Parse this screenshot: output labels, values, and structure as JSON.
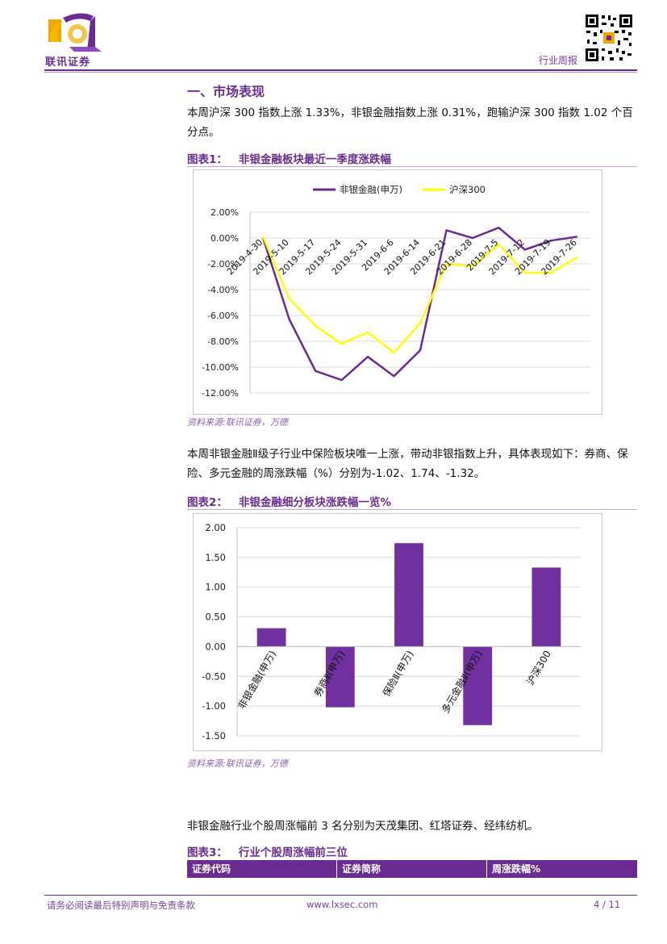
{
  "header": {
    "logo_text": "联讯证券",
    "report_type": "行业周报"
  },
  "section": {
    "title": "一、市场表现",
    "para1": "本周沪深 300 指数上涨 1.33%，非银金融指数上涨 0.31%，跑输沪深 300 指数 1.02 个百分点。",
    "para2": "本周非银金融Ⅱ级子行业中保险板块唯一上涨，带动非银指数上升，具体表现如下：券商、保险、多元金融的周涨跌幅（%）分别为-1.02、1.74、-1.32。",
    "para3": "非银金融行业个股周涨幅前 3 名分别为天茂集团、红塔证券、经纬纺机。"
  },
  "figures": {
    "fig1": {
      "num": "图表1：",
      "title": "非银金融板块最近一季度涨跌幅",
      "source": "资料来源:联讯证券，万德"
    },
    "fig2": {
      "num": "图表2：",
      "title": "非银金融细分板块涨跌幅一览%",
      "source": "资料来源:联讯证券，万德"
    },
    "fig3": {
      "num": "图表3：",
      "title": "行业个股周涨幅前三位"
    }
  },
  "table3": {
    "columns": [
      "证券代码",
      "证券简称",
      "周涨跌幅%"
    ]
  },
  "footer": {
    "disclaimer": "请务必阅读最后特别声明与免责条款",
    "url": "www.lxsec.com",
    "page": "4 / 11"
  },
  "colors": {
    "brand": "#6a2c91",
    "series1": "#6a2c91",
    "series2": "#ffff00",
    "bar": "#7030a0"
  },
  "chart_data": [
    {
      "type": "line",
      "x": [
        "2019-4-30",
        "2019-5-10",
        "2019-5-17",
        "2019-5-24",
        "2019-5-31",
        "2019-6-6",
        "2019-6-14",
        "2019-6-21",
        "2019-6-28",
        "2019-7-5",
        "2019-7-12",
        "2019-7-19",
        "2019-7-26"
      ],
      "series": [
        {
          "name": "非银金融(申万)",
          "values": [
            0.0,
            -6.3,
            -10.3,
            -11.0,
            -9.2,
            -10.7,
            -8.7,
            0.6,
            0.0,
            0.8,
            -0.9,
            -0.2,
            0.1
          ]
        },
        {
          "name": "沪深300",
          "values": [
            0.1,
            -4.7,
            -6.8,
            -8.2,
            -7.3,
            -8.9,
            -6.6,
            -2.0,
            -2.2,
            -0.5,
            -2.7,
            -2.7,
            -1.5
          ]
        }
      ],
      "yticks": [
        "2.00%",
        "0.00%",
        "-2.00%",
        "-4.00%",
        "-6.00%",
        "-8.00%",
        "-10.00%",
        "-12.00%"
      ],
      "ylim": [
        -12,
        2
      ],
      "legend": "top",
      "grid": true
    },
    {
      "type": "bar",
      "categories": [
        "非银金融(申万)",
        "券商Ⅱ(申万)",
        "保险Ⅱ(申万)",
        "多元金融Ⅱ(申万)",
        "沪深300"
      ],
      "values": [
        0.31,
        -1.02,
        1.74,
        -1.32,
        1.33
      ],
      "yticks": [
        "2.00",
        "1.50",
        "1.00",
        "0.50",
        "0.00",
        "-0.50",
        "-1.00",
        "-1.50"
      ],
      "ylim": [
        -1.5,
        2.0
      ],
      "grid": true
    }
  ]
}
